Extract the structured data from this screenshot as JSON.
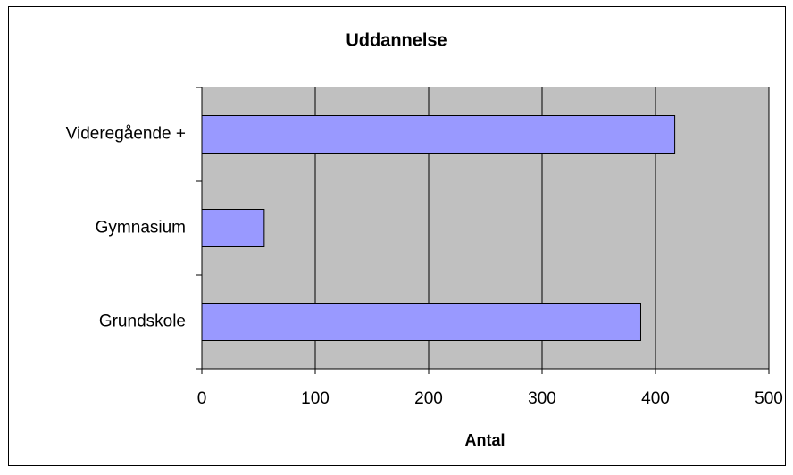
{
  "chart_data": {
    "type": "barh",
    "title": "Uddannelse",
    "x_label": "Antal",
    "categories": [
      "Videregående +",
      "Gymnasium",
      "Grundskole"
    ],
    "values": [
      417,
      55,
      387
    ],
    "color": "#9999ff",
    "xlim": [
      0,
      500
    ],
    "xticks": [
      0,
      100,
      200,
      300,
      400,
      500
    ],
    "grid": true
  }
}
